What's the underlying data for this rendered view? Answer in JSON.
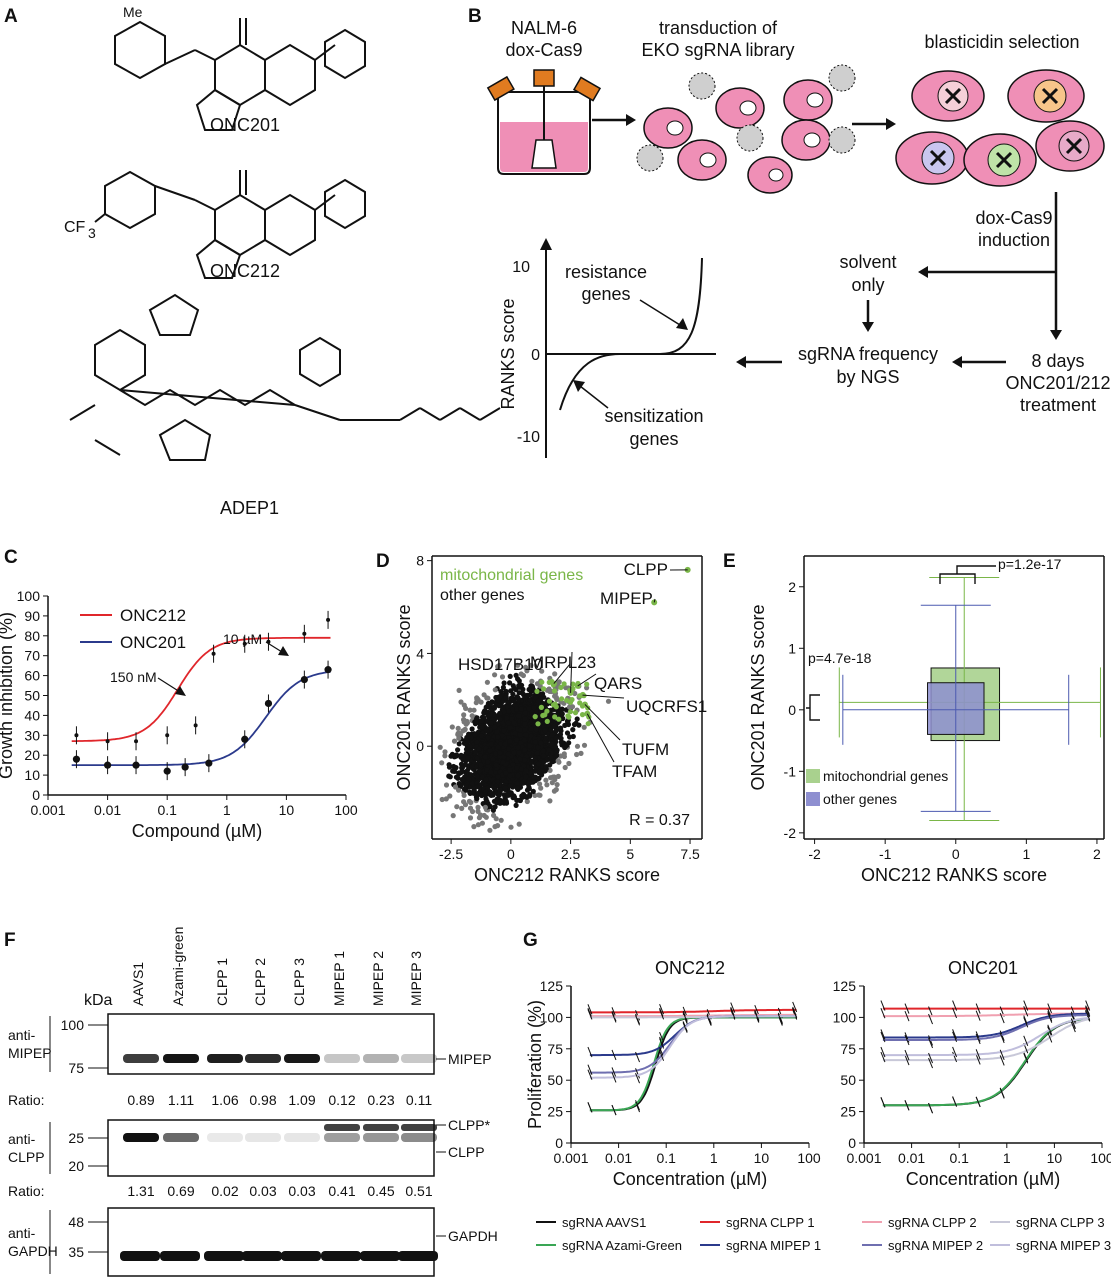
{
  "panels": {
    "A": {
      "label": "A",
      "compounds": [
        "ONC201",
        "ONC212",
        "ADEP1"
      ],
      "substituents": {
        "me": "Me",
        "cf3": "CF",
        "cf3_sub": "3"
      }
    },
    "B": {
      "label": "B",
      "steps": {
        "cells": [
          "NALM-6",
          "dox-Cas9"
        ],
        "transduction": [
          "transduction of",
          "EKO sgRNA library"
        ],
        "selection": "blasticidin selection",
        "induction": [
          "dox-Cas9",
          "induction"
        ],
        "solvent": [
          "solvent",
          "only"
        ],
        "treatment": [
          "8 days",
          "ONC201/212",
          "treatment"
        ],
        "frequency": [
          "sgRNA frequency",
          "by NGS"
        ]
      },
      "graph": {
        "ylabel": "RANKS score",
        "ticks": [
          "10",
          "0",
          "-10"
        ],
        "resistance": [
          "resistance",
          "genes"
        ],
        "sensitization": [
          "sensitization",
          "genes"
        ]
      }
    },
    "C": {
      "label": "C"
    },
    "D": {
      "label": "D"
    },
    "E": {
      "label": "E"
    },
    "F": {
      "label": "F",
      "kda": "kDa",
      "lanes": [
        "AAVS1",
        "Azami-green",
        "CLPP 1",
        "CLPP 2",
        "CLPP 3",
        "MIPEP 1",
        "MIPEP 2",
        "MIPEP 3"
      ],
      "blots": [
        {
          "antibody": [
            "anti-",
            "MIPEP"
          ],
          "markers": [
            "100",
            "75"
          ],
          "bands": [
            "MIPEP"
          ],
          "ratio_label": "Ratio:",
          "ratios": [
            "0.89",
            "1.11",
            "1.06",
            "0.98",
            "1.09",
            "0.12",
            "0.23",
            "0.11"
          ]
        },
        {
          "antibody": [
            "anti-",
            "CLPP"
          ],
          "markers": [
            "25",
            "20"
          ],
          "bands": [
            "CLPP*",
            "CLPP"
          ],
          "ratio_label": "Ratio:",
          "ratios": [
            "1.31",
            "0.69",
            "0.02",
            "0.03",
            "0.03",
            "0.41",
            "0.45",
            "0.51"
          ]
        },
        {
          "antibody": [
            "anti-",
            "GAPDH"
          ],
          "markers": [
            "48",
            "35"
          ],
          "bands": [
            "GAPDH"
          ]
        }
      ]
    },
    "G": {
      "label": "G"
    }
  },
  "chart_data": [
    {
      "id": "C",
      "type": "line",
      "xlabel": "Compound (µM)",
      "ylabel": "Growth inhibition (%)",
      "xscale": "log",
      "xlim": [
        0.001,
        100
      ],
      "ylim": [
        0,
        100
      ],
      "xticks": [
        "0.001",
        "0.01",
        "0.1",
        "1",
        "10",
        "100"
      ],
      "yticks": [
        "0",
        "10",
        "20",
        "30",
        "40",
        "50",
        "60",
        "70",
        "80",
        "90",
        "100"
      ],
      "annotations": [
        "150 nM",
        "10 µM"
      ],
      "series": [
        {
          "name": "ONC212",
          "color": "#e0262b",
          "fit": {
            "bottom": 27,
            "top": 79,
            "ec50": 0.15,
            "hill": 1.6
          },
          "x": [
            0.003,
            0.01,
            0.03,
            0.1,
            0.3,
            0.6,
            2,
            5,
            20,
            50
          ],
          "y": [
            30,
            27,
            27,
            30,
            35,
            71,
            76,
            77,
            81,
            88
          ]
        },
        {
          "name": "ONC201",
          "color": "#2b3a8c",
          "fit": {
            "bottom": 15,
            "top": 63,
            "ec50": 4.5,
            "hill": 1.5
          },
          "x": [
            0.003,
            0.01,
            0.03,
            0.1,
            0.2,
            0.5,
            2,
            5,
            20,
            50
          ],
          "y": [
            18,
            15,
            15,
            12,
            14,
            16,
            28,
            46,
            58,
            63
          ]
        }
      ]
    },
    {
      "id": "D",
      "type": "scatter",
      "xlabel": "ONC212 RANKS score",
      "ylabel": "ONC201 RANKS score",
      "xlim": [
        -3.3,
        8
      ],
      "ylim": [
        -4,
        8.2
      ],
      "xticks": [
        "-2.5",
        "0",
        "2.5",
        "5",
        "7.5"
      ],
      "yticks": [
        "0",
        "4",
        "8"
      ],
      "legend": [
        "mitochondrial genes",
        "other genes"
      ],
      "annotation": "R = 0.37",
      "labeled_points": [
        {
          "label": "CLPP",
          "x": 7.4,
          "y": 7.6
        },
        {
          "label": "MIPEP",
          "x": 6.0,
          "y": 6.2
        },
        {
          "label": "MRPL23",
          "x": 2.5,
          "y": 2.3
        },
        {
          "label": "HSD17B10",
          "x": 1.8,
          "y": 2.7
        },
        {
          "label": "QARS",
          "x": 2.8,
          "y": 2.6
        },
        {
          "label": "UQCRFS1",
          "x": 3.0,
          "y": 2.2
        },
        {
          "label": "TUFM",
          "x": 3.1,
          "y": 1.8
        },
        {
          "label": "TFAM",
          "x": 3.2,
          "y": 1.4
        }
      ]
    },
    {
      "id": "E",
      "type": "box",
      "xlabel": "ONC212 RANKS score",
      "ylabel": "ONC201 RANKS score",
      "xlim": [
        -2.15,
        2.1
      ],
      "ylim": [
        -2.1,
        2.5
      ],
      "xticks": [
        "-2",
        "-1",
        "0",
        "1",
        "2"
      ],
      "yticks": [
        "-2",
        "-1",
        "0",
        "1",
        "2"
      ],
      "legend": [
        "mitochondrial genes",
        "other genes"
      ],
      "pvalues": [
        "p=1.2e-17",
        "p=4.7e-18"
      ],
      "groups": [
        {
          "name": "mitochondrial genes",
          "color": "#a9d18e",
          "x_box": [
            -0.35,
            0.62
          ],
          "x_whisk": [
            -1.65,
            2.05
          ],
          "x_med": 0.12,
          "y_box": [
            -0.5,
            0.68
          ],
          "y_whisk": [
            -1.8,
            2.15
          ],
          "y_med": 0.12
        },
        {
          "name": "other genes",
          "color": "#8e8fd0",
          "x_box": [
            -0.4,
            0.4
          ],
          "x_whisk": [
            -1.6,
            1.6
          ],
          "x_med": 0,
          "y_box": [
            -0.4,
            0.44
          ],
          "y_whisk": [
            -1.65,
            1.7
          ],
          "y_med": 0
        }
      ]
    },
    {
      "id": "G1",
      "type": "line",
      "title": "ONC212",
      "xlabel": "Concentration (µM)",
      "ylabel": "Proliferation (%)",
      "xscale": "log",
      "xlim": [
        0.001,
        100
      ],
      "ylim": [
        0,
        125
      ],
      "xticks": [
        "0.001",
        "0.01",
        "0.1",
        "1",
        "10",
        "100"
      ],
      "yticks": [
        "0",
        "25",
        "50",
        "75",
        "100",
        "125"
      ],
      "series": [
        {
          "name": "sgRNA AAVS1",
          "color": "#111111",
          "fit": {
            "top": 100,
            "bottom": 26,
            "ec50": 0.06,
            "hill": 3
          }
        },
        {
          "name": "sgRNA Azami-Green",
          "color": "#3aa655",
          "fit": {
            "top": 100,
            "bottom": 26,
            "ec50": 0.055,
            "hill": 3
          }
        },
        {
          "name": "sgRNA CLPP 1",
          "color": "#e0262b",
          "fit": {
            "top": 106,
            "bottom": 104,
            "ec50": 1,
            "hill": 1
          }
        },
        {
          "name": "sgRNA CLPP 2",
          "color": "#f0a0b0",
          "fit": {
            "top": 102,
            "bottom": 101,
            "ec50": 1,
            "hill": 1
          }
        },
        {
          "name": "sgRNA CLPP 3",
          "color": "#c8c8d8",
          "fit": {
            "top": 101,
            "bottom": 100,
            "ec50": 1,
            "hill": 1
          }
        },
        {
          "name": "sgRNA MIPEP 1",
          "color": "#2b3a8c",
          "fit": {
            "top": 101,
            "bottom": 70,
            "ec50": 0.15,
            "hill": 2
          }
        },
        {
          "name": "sgRNA MIPEP 2",
          "color": "#6f6fb0",
          "fit": {
            "top": 101,
            "bottom": 56,
            "ec50": 0.12,
            "hill": 2
          }
        },
        {
          "name": "sgRNA MIPEP 3",
          "color": "#c0bedc",
          "fit": {
            "top": 101,
            "bottom": 52,
            "ec50": 0.12,
            "hill": 2
          }
        }
      ]
    },
    {
      "id": "G2",
      "type": "line",
      "title": "ONC201",
      "xlabel": "Concentration (µM)",
      "ylabel": "",
      "xscale": "log",
      "xlim": [
        0.001,
        100
      ],
      "ylim": [
        0,
        125
      ],
      "xticks": [
        "0.001",
        "0.01",
        "0.1",
        "1",
        "10",
        "100"
      ],
      "yticks": [
        "0",
        "25",
        "50",
        "75",
        "100",
        "125"
      ],
      "series": [
        {
          "name": "sgRNA AAVS1",
          "color": "#111111",
          "fit": {
            "top": 100,
            "bottom": 30,
            "ec50": 2.5,
            "hill": 1.4
          }
        },
        {
          "name": "sgRNA Azami-Green",
          "color": "#3aa655",
          "fit": {
            "top": 100,
            "bottom": 30,
            "ec50": 2.4,
            "hill": 1.4
          }
        },
        {
          "name": "sgRNA CLPP 1",
          "color": "#e0262b",
          "fit": {
            "top": 107,
            "bottom": 107,
            "ec50": 1,
            "hill": 1
          }
        },
        {
          "name": "sgRNA CLPP 2",
          "color": "#f0a0b0",
          "fit": {
            "top": 103,
            "bottom": 101,
            "ec50": 1,
            "hill": 1
          }
        },
        {
          "name": "sgRNA CLPP 3",
          "color": "#c8c8d8",
          "fit": {
            "top": 102,
            "bottom": 66,
            "ec50": 8,
            "hill": 1.2
          }
        },
        {
          "name": "sgRNA MIPEP 1",
          "color": "#2b3a8c",
          "fit": {
            "top": 103,
            "bottom": 84,
            "ec50": 2,
            "hill": 1.5
          }
        },
        {
          "name": "sgRNA MIPEP 2",
          "color": "#6f6fb0",
          "fit": {
            "top": 102,
            "bottom": 82,
            "ec50": 2,
            "hill": 1.5
          }
        },
        {
          "name": "sgRNA MIPEP 3",
          "color": "#c0bedc",
          "fit": {
            "top": 101,
            "bottom": 70,
            "ec50": 5,
            "hill": 1.3
          }
        }
      ]
    }
  ],
  "legend_G": [
    "sgRNA AAVS1",
    "sgRNA CLPP 1",
    "sgRNA CLPP 2",
    "sgRNA CLPP 3",
    "sgRNA Azami-Green",
    "sgRNA MIPEP 1",
    "sgRNA MIPEP 2",
    "sgRNA MIPEP 3"
  ]
}
